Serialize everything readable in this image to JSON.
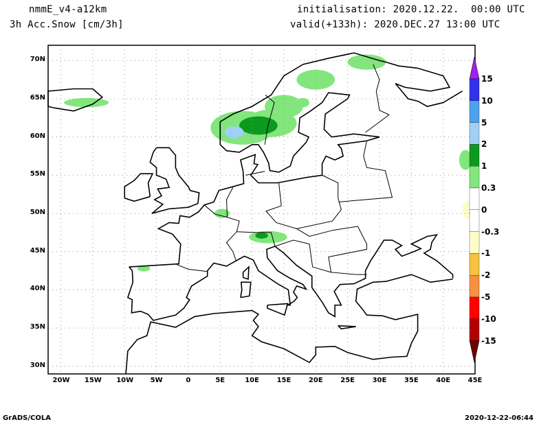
{
  "header": {
    "model": "nmmE_v4-a12km",
    "variable": "3h Acc.Snow [cm/3h]",
    "init": "initialisation: 2020.12.22.  00:00 UTC",
    "valid": "valid(+133h): 2020.DEC.27 13:00 UTC"
  },
  "footer": {
    "left": "GrADS/COLA",
    "right": "2020-12-22-06:44"
  },
  "map": {
    "lon_range": [
      -22,
      45
    ],
    "lat_range": [
      29,
      72
    ],
    "lon_ticks": [
      {
        "v": -20,
        "label": "20W"
      },
      {
        "v": -15,
        "label": "15W"
      },
      {
        "v": -10,
        "label": "10W"
      },
      {
        "v": -5,
        "label": "5W"
      },
      {
        "v": 0,
        "label": "0"
      },
      {
        "v": 5,
        "label": "5E"
      },
      {
        "v": 10,
        "label": "10E"
      },
      {
        "v": 15,
        "label": "15E"
      },
      {
        "v": 20,
        "label": "20E"
      },
      {
        "v": 25,
        "label": "25E"
      },
      {
        "v": 30,
        "label": "30E"
      },
      {
        "v": 35,
        "label": "35E"
      },
      {
        "v": 40,
        "label": "40E"
      },
      {
        "v": 45,
        "label": "45E"
      }
    ],
    "lat_ticks": [
      {
        "v": 70,
        "label": "70N"
      },
      {
        "v": 65,
        "label": "65N"
      },
      {
        "v": 60,
        "label": "60N"
      },
      {
        "v": 55,
        "label": "55N"
      },
      {
        "v": 50,
        "label": "50N"
      },
      {
        "v": 45,
        "label": "45N"
      },
      {
        "v": 40,
        "label": "40N"
      },
      {
        "v": 35,
        "label": "35N"
      },
      {
        "v": 30,
        "label": "30N"
      }
    ]
  },
  "legend": {
    "labels": [
      "15",
      "10",
      "5",
      "2",
      "1",
      "0.3",
      "0",
      "-0.3",
      "-1",
      "-2",
      "-5",
      "-10",
      "-15"
    ],
    "top_arrow": "#a020f0",
    "bottom_arrow": "#6e0000",
    "colors": [
      "#3232e8",
      "#4ea1ec",
      "#a0d0f6",
      "#0c9a1e",
      "#82e67d",
      "#ffffff",
      "#ffffff",
      "#fdfdc8",
      "#f5c242",
      "#f7913f",
      "#ff0000",
      "#b20000"
    ]
  }
}
